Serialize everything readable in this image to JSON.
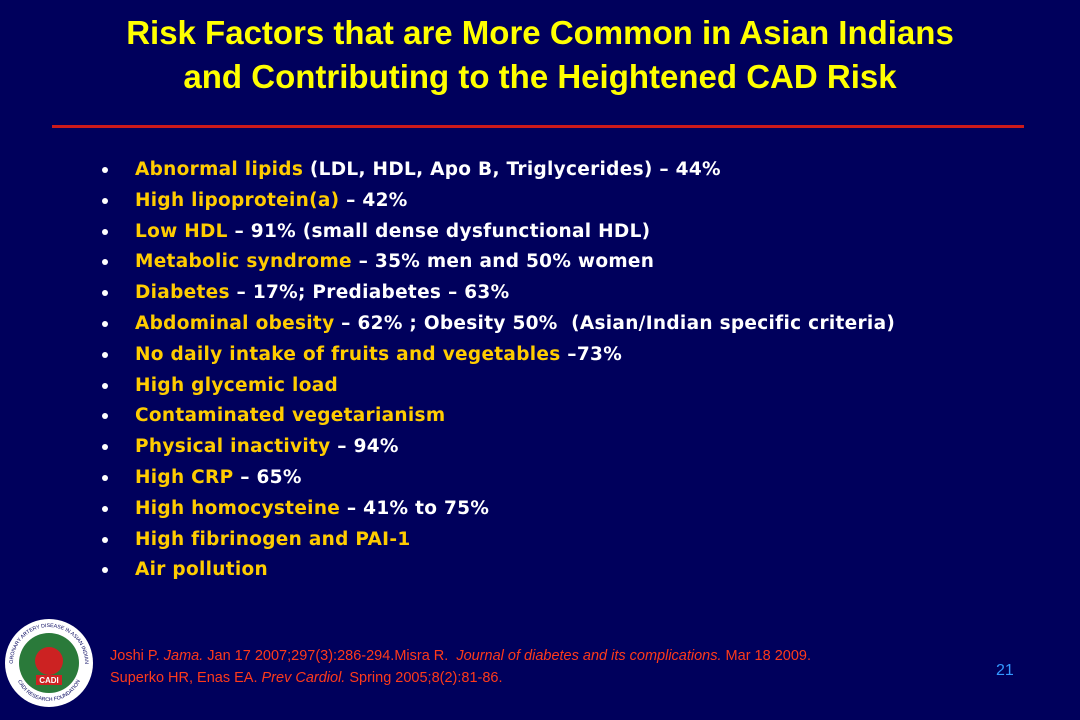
{
  "title": {
    "lines": [
      "Risk Factors that are More Common in Asian Indians",
      "and Contributing to the Heightened CAD Risk"
    ]
  },
  "bullets": [
    {
      "highlight": "Abnormal lipids",
      "rest": " (LDL, HDL, Apo B, Triglycerides) – 44%"
    },
    {
      "highlight": "High lipoprotein(a)",
      "rest": " – 42%"
    },
    {
      "highlight": "Low HDL",
      "rest": " – 91% (small dense dysfunctional HDL)"
    },
    {
      "highlight": "Metabolic syndrome",
      "rest": " – 35% men and 50% women"
    },
    {
      "highlight": "Diabetes",
      "rest": " – 17%; Prediabetes – 63%"
    },
    {
      "highlight": "Abdominal obesity",
      "rest": " – 62% ; Obesity 50%  (Asian/Indian specific criteria)"
    },
    {
      "highlight": "No daily intake of fruits and vegetables",
      "rest": " –73%"
    },
    {
      "highlight": "High glycemic load"
    },
    {
      "highlight": "Contaminated vegetarianism"
    },
    {
      "highlight": "Physical inactivity",
      "rest": " – 94%"
    },
    {
      "highlight": "High CRP",
      "rest": " – 65%"
    },
    {
      "highlight": "High homocysteine",
      "rest": " – 41% to 75%"
    },
    {
      "highlight": "High fibrinogen and PAI-1"
    },
    {
      "highlight": "Air pollution"
    }
  ],
  "references": [
    [
      {
        "text": "Joshi P. "
      },
      {
        "text": "Jama.",
        "italic": true
      },
      {
        "text": " Jan 17 2007;297(3):286-294.Misra R.  "
      },
      {
        "text": "Journal of diabetes and its complications.",
        "italic": true
      },
      {
        "text": " Mar 18 2009."
      }
    ],
    [
      {
        "text": "Superko HR, Enas EA. "
      },
      {
        "text": "Prev Cardiol.",
        "italic": true
      },
      {
        "text": " Spring 2005;8(2):81-86."
      }
    ]
  ],
  "page_number": "21",
  "logo": {
    "top_text": "CORONARY ARTERY DISEASE IN ASIAN INDIANS",
    "badge": "CADI",
    "bottom_text": "CADI RESEARCH FOUNDATION"
  }
}
